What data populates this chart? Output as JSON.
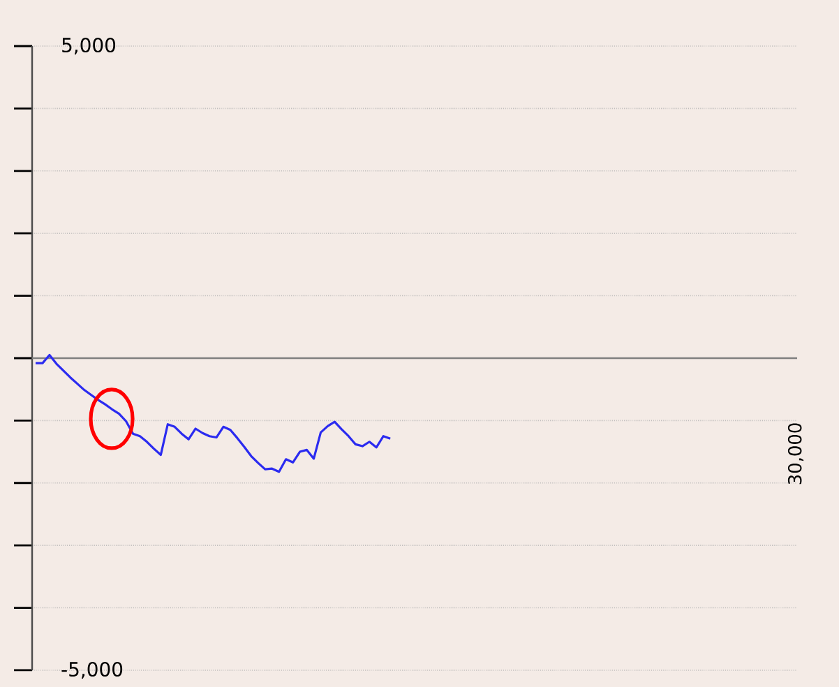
{
  "chart_data": {
    "type": "line",
    "categories": [
      null,
      null,
      null,
      null,
      null,
      null,
      null,
      null,
      null,
      null,
      null,
      null,
      null,
      null,
      null,
      null,
      null,
      null,
      null,
      null,
      null,
      null,
      null,
      null,
      null,
      null,
      null,
      null,
      null,
      null,
      null,
      null,
      null,
      null,
      null,
      null,
      null,
      null,
      null,
      null,
      null,
      null,
      null,
      null,
      null,
      null,
      null,
      null,
      null,
      null,
      null,
      null,
      null,
      null,
      null,
      null,
      null,
      null,
      null,
      null,
      null,
      null,
      null,
      null,
      null,
      null,
      null,
      null,
      null,
      null,
      null,
      null,
      null,
      null,
      null,
      null,
      null,
      null,
      null,
      null,
      null,
      null,
      null,
      null,
      null,
      null,
      null,
      null,
      null,
      null,
      null,
      null,
      null,
      null,
      null,
      null,
      null,
      null,
      null,
      null,
      null,
      null,
      null,
      null,
      null,
      null,
      null,
      null,
      null,
      null
    ],
    "values": [
      -80,
      -80,
      50,
      -90,
      -200,
      -310,
      -410,
      -510,
      -590,
      -670,
      -740,
      -820,
      -890,
      -1010,
      -1210,
      -1250,
      -1340,
      -1450,
      -1550,
      -1060,
      -1100,
      -1210,
      -1300,
      -1130,
      -1200,
      -1250,
      -1270,
      -1100,
      -1150,
      -1280,
      -1420,
      -1570,
      -1680,
      -1780,
      -1770,
      -1820,
      -1620,
      -1670,
      -1500,
      -1470,
      -1610,
      -1190,
      -1090,
      -1020,
      -1140,
      -1250,
      -1380,
      -1410,
      -1340,
      -1430,
      -1250,
      -1290,
      null,
      null,
      null,
      null,
      null,
      null,
      null,
      null,
      null,
      null,
      null,
      null,
      null,
      null,
      null,
      null,
      null,
      null,
      null,
      null,
      null,
      null,
      null,
      null,
      null,
      null,
      null,
      null,
      null,
      null,
      null,
      null,
      null,
      null,
      null,
      null,
      null,
      null,
      null,
      null,
      null,
      null,
      null,
      null,
      null,
      null,
      null,
      null,
      null,
      null,
      null,
      null,
      null,
      null,
      null,
      null,
      null,
      null
    ],
    "color": "#2b2bf0",
    "line_style": "solid",
    "ylim": [
      -5000,
      5000
    ],
    "yticks": [
      {
        "value": -5000,
        "label": "-5,000"
      },
      {
        "value": -4000,
        "label": null
      },
      {
        "value": -3000,
        "label": null
      },
      {
        "value": -2000,
        "label": null
      },
      {
        "value": -1000,
        "label": null
      },
      {
        "value": 0,
        "label": null
      },
      {
        "value": 1000,
        "label": null
      },
      {
        "value": 2000,
        "label": null
      },
      {
        "value": 3000,
        "label": null
      },
      {
        "value": 4000,
        "label": null
      },
      {
        "value": 5000,
        "label": "5,000"
      }
    ],
    "tick_labels": "y",
    "grid": "y",
    "ref_lines": [
      {
        "axis": "y",
        "value": 0,
        "color": "#808080"
      }
    ],
    "annotations": [
      "30,000"
    ]
  }
}
